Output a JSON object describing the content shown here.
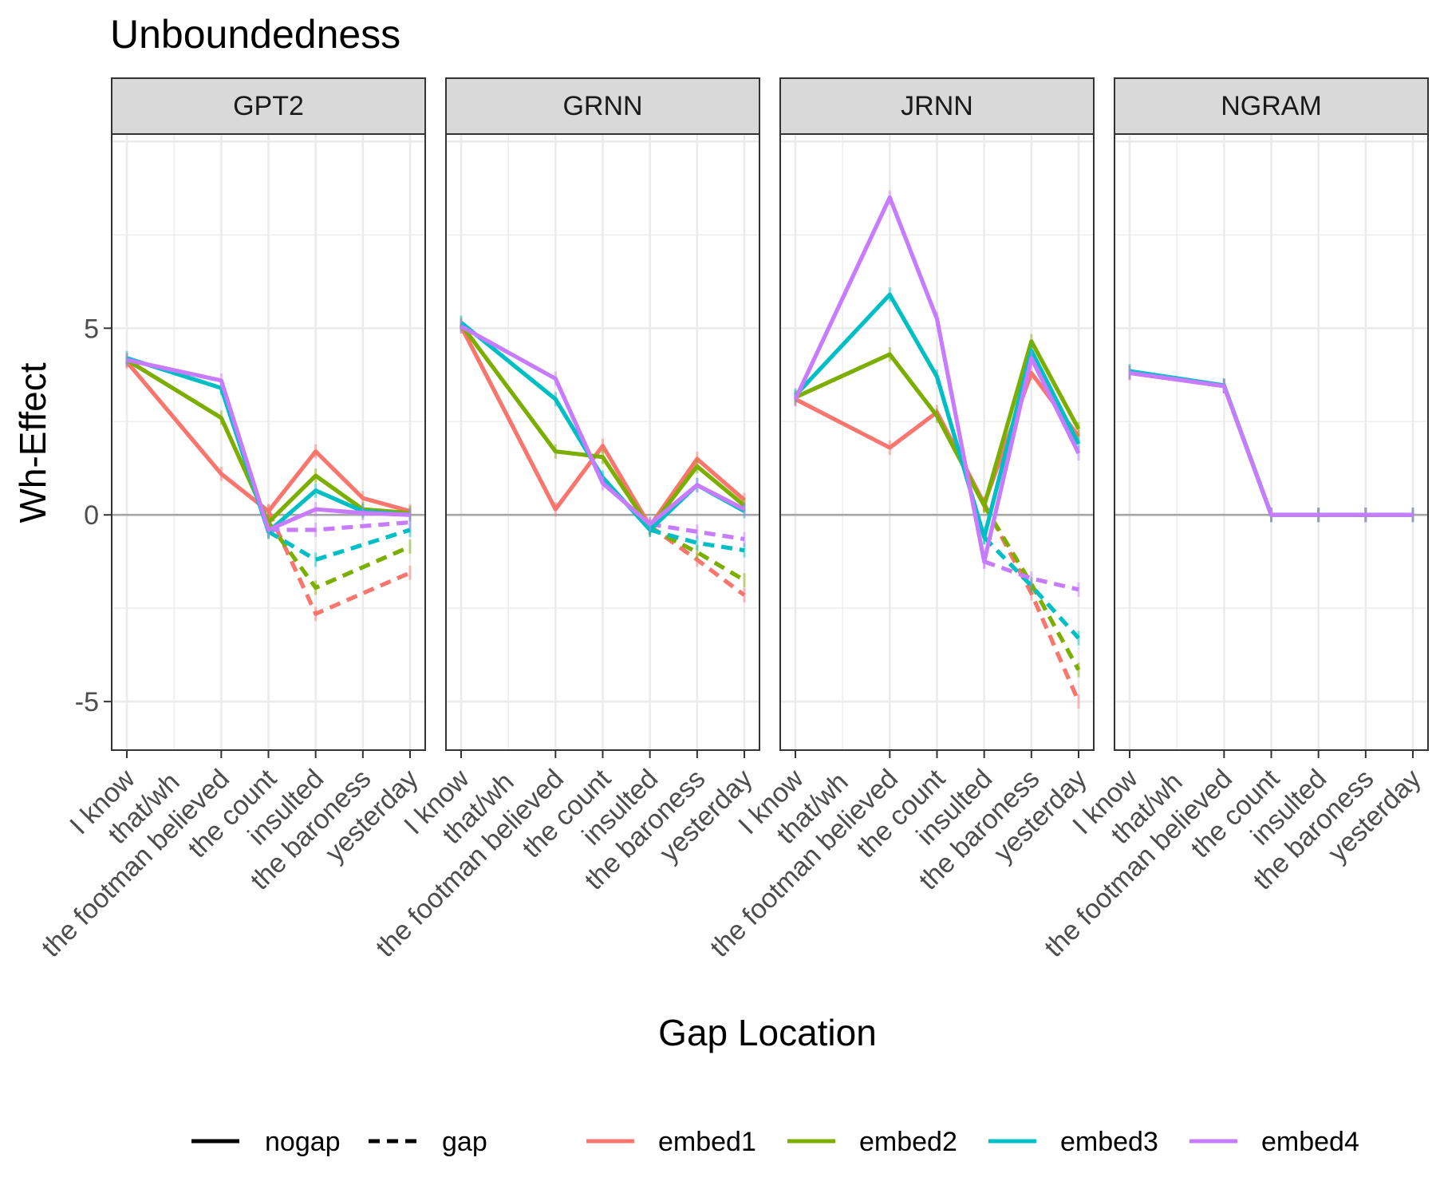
{
  "chart_data": {
    "type": "line",
    "title": "Unboundedness",
    "xlabel": "Gap Location",
    "ylabel": "Wh-Effect",
    "ylim": [
      -6.3,
      10.2
    ],
    "yticks": [
      -5,
      0,
      5
    ],
    "grid": true,
    "legend_position": "bottom",
    "categories": [
      "I know",
      "that/wh",
      "the footman believed",
      "the count",
      "insulted",
      "the baroness",
      "yesterday"
    ],
    "x_label_order": [
      0,
      2,
      3,
      4,
      5,
      6
    ],
    "legend": {
      "linetypes": [
        {
          "name": "nogap",
          "dash": "solid"
        },
        {
          "name": "gap",
          "dash": "dashed"
        }
      ],
      "colors": [
        {
          "name": "embed1",
          "color": "#F8766D"
        },
        {
          "name": "embed2",
          "color": "#7CAE00"
        },
        {
          "name": "embed3",
          "color": "#00BFC4"
        },
        {
          "name": "embed4",
          "color": "#C77CFF"
        }
      ]
    },
    "panels": [
      {
        "name": "GPT2",
        "series": [
          {
            "color": "embed1",
            "type": "nogap",
            "x": [
              0,
              2,
              3,
              4,
              5,
              6
            ],
            "y": [
              4.1,
              1.1,
              0.1,
              1.7,
              0.45,
              0.1
            ]
          },
          {
            "color": "embed2",
            "type": "nogap",
            "x": [
              0,
              2,
              3,
              4,
              5,
              6
            ],
            "y": [
              4.15,
              2.6,
              -0.2,
              1.05,
              0.15,
              0.05
            ]
          },
          {
            "color": "embed3",
            "type": "nogap",
            "x": [
              0,
              2,
              3,
              4,
              5,
              6
            ],
            "y": [
              4.2,
              3.4,
              -0.45,
              0.65,
              0.1,
              0.0
            ]
          },
          {
            "color": "embed4",
            "type": "nogap",
            "x": [
              0,
              2,
              3,
              4,
              5,
              6
            ],
            "y": [
              4.15,
              3.6,
              -0.4,
              0.15,
              0.05,
              0.0
            ]
          },
          {
            "color": "embed1",
            "type": "gap",
            "x": [
              3,
              4,
              6
            ],
            "y": [
              0.1,
              -2.65,
              -1.55
            ]
          },
          {
            "color": "embed2",
            "type": "gap",
            "x": [
              3,
              4,
              6
            ],
            "y": [
              -0.2,
              -1.95,
              -0.85
            ]
          },
          {
            "color": "embed3",
            "type": "gap",
            "x": [
              3,
              4,
              6
            ],
            "y": [
              -0.45,
              -1.2,
              -0.4
            ]
          },
          {
            "color": "embed4",
            "type": "gap",
            "x": [
              3,
              4,
              6
            ],
            "y": [
              -0.4,
              -0.4,
              -0.2
            ]
          }
        ]
      },
      {
        "name": "GRNN",
        "series": [
          {
            "color": "embed1",
            "type": "nogap",
            "x": [
              0,
              2,
              3,
              4,
              5,
              6
            ],
            "y": [
              5.05,
              0.15,
              1.85,
              -0.3,
              1.5,
              0.4
            ]
          },
          {
            "color": "embed2",
            "type": "nogap",
            "x": [
              0,
              2,
              3,
              4,
              5,
              6
            ],
            "y": [
              5.1,
              1.7,
              1.55,
              -0.35,
              1.3,
              0.25
            ]
          },
          {
            "color": "embed3",
            "type": "nogap",
            "x": [
              0,
              2,
              3,
              4,
              5,
              6
            ],
            "y": [
              5.15,
              3.1,
              1.0,
              -0.4,
              0.8,
              0.1
            ]
          },
          {
            "color": "embed4",
            "type": "nogap",
            "x": [
              0,
              2,
              3,
              4,
              5,
              6
            ],
            "y": [
              5.05,
              3.65,
              0.85,
              -0.25,
              0.8,
              0.15
            ]
          },
          {
            "color": "embed1",
            "type": "gap",
            "x": [
              4,
              5,
              6
            ],
            "y": [
              -0.3,
              -1.2,
              -2.15
            ]
          },
          {
            "color": "embed2",
            "type": "gap",
            "x": [
              4,
              5,
              6
            ],
            "y": [
              -0.35,
              -1.0,
              -1.75
            ]
          },
          {
            "color": "embed3",
            "type": "gap",
            "x": [
              4,
              5,
              6
            ],
            "y": [
              -0.4,
              -0.75,
              -0.95
            ]
          },
          {
            "color": "embed4",
            "type": "gap",
            "x": [
              4,
              5,
              6
            ],
            "y": [
              -0.25,
              -0.45,
              -0.65
            ]
          }
        ]
      },
      {
        "name": "JRNN",
        "series": [
          {
            "color": "embed1",
            "type": "nogap",
            "x": [
              0,
              2,
              3,
              4,
              5,
              6
            ],
            "y": [
              3.1,
              1.8,
              2.75,
              0.3,
              3.8,
              2.1
            ]
          },
          {
            "color": "embed2",
            "type": "nogap",
            "x": [
              0,
              2,
              3,
              4,
              5,
              6
            ],
            "y": [
              3.15,
              4.3,
              2.65,
              0.25,
              4.65,
              2.3
            ]
          },
          {
            "color": "embed3",
            "type": "nogap",
            "x": [
              0,
              2,
              3,
              4,
              5,
              6
            ],
            "y": [
              3.2,
              5.9,
              3.7,
              -0.6,
              4.4,
              1.9
            ]
          },
          {
            "color": "embed4",
            "type": "nogap",
            "x": [
              0,
              2,
              3,
              4,
              5,
              6
            ],
            "y": [
              3.1,
              8.5,
              5.25,
              -1.25,
              4.2,
              1.65
            ]
          },
          {
            "color": "embed1",
            "type": "gap",
            "x": [
              4,
              5,
              6
            ],
            "y": [
              0.3,
              -2.1,
              -5.0
            ]
          },
          {
            "color": "embed2",
            "type": "gap",
            "x": [
              4,
              5,
              6
            ],
            "y": [
              0.25,
              -1.85,
              -4.15
            ]
          },
          {
            "color": "embed3",
            "type": "gap",
            "x": [
              4,
              5,
              6
            ],
            "y": [
              -0.6,
              -1.9,
              -3.3
            ]
          },
          {
            "color": "embed4",
            "type": "gap",
            "x": [
              4,
              5,
              6
            ],
            "y": [
              -1.25,
              -1.7,
              -2.0
            ]
          }
        ]
      },
      {
        "name": "NGRAM",
        "series": [
          {
            "color": "embed1",
            "type": "nogap",
            "x": [
              0,
              2,
              3,
              4,
              5,
              6
            ],
            "y": [
              3.8,
              3.45,
              0.0,
              0.0,
              0.0,
              0.0
            ]
          },
          {
            "color": "embed2",
            "type": "nogap",
            "x": [
              0,
              2,
              3,
              4,
              5,
              6
            ],
            "y": [
              3.82,
              3.45,
              0.0,
              0.0,
              0.0,
              0.0
            ]
          },
          {
            "color": "embed3",
            "type": "nogap",
            "x": [
              0,
              2,
              3,
              4,
              5,
              6
            ],
            "y": [
              3.85,
              3.47,
              0.0,
              0.0,
              0.0,
              0.0
            ]
          },
          {
            "color": "embed4",
            "type": "nogap",
            "x": [
              0,
              2,
              3,
              4,
              5,
              6
            ],
            "y": [
              3.8,
              3.45,
              0.0,
              0.0,
              0.0,
              0.0
            ]
          }
        ]
      }
    ]
  }
}
